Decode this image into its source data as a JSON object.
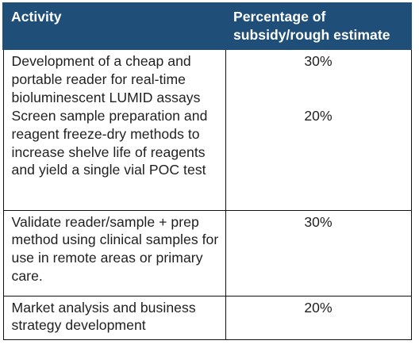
{
  "table": {
    "headers": {
      "activity": "Activity",
      "percentage": "Percentage of subsidy/rough estimate"
    },
    "rows": [
      {
        "entries": [
          {
            "activity": "Development of a cheap and portable reader for real-time bioluminescent LUMID assays",
            "percentage": "30%"
          },
          {
            "activity": "Screen sample preparation and reagent freeze-dry methods to increase shelve life of reagents and yield a single vial POC test",
            "percentage": "20%"
          }
        ]
      },
      {
        "entries": [
          {
            "activity": "Validate reader/sample + prep method using clinical samples for use in remote areas or primary care.",
            "percentage": "30%"
          }
        ]
      },
      {
        "entries": [
          {
            "activity": "Market analysis and business strategy development",
            "percentage": "20%"
          }
        ]
      }
    ]
  },
  "colors": {
    "header_background": "#1f4e79",
    "header_text": "#ffffff",
    "border": "#111111",
    "body_text": "#1f1f1f"
  }
}
